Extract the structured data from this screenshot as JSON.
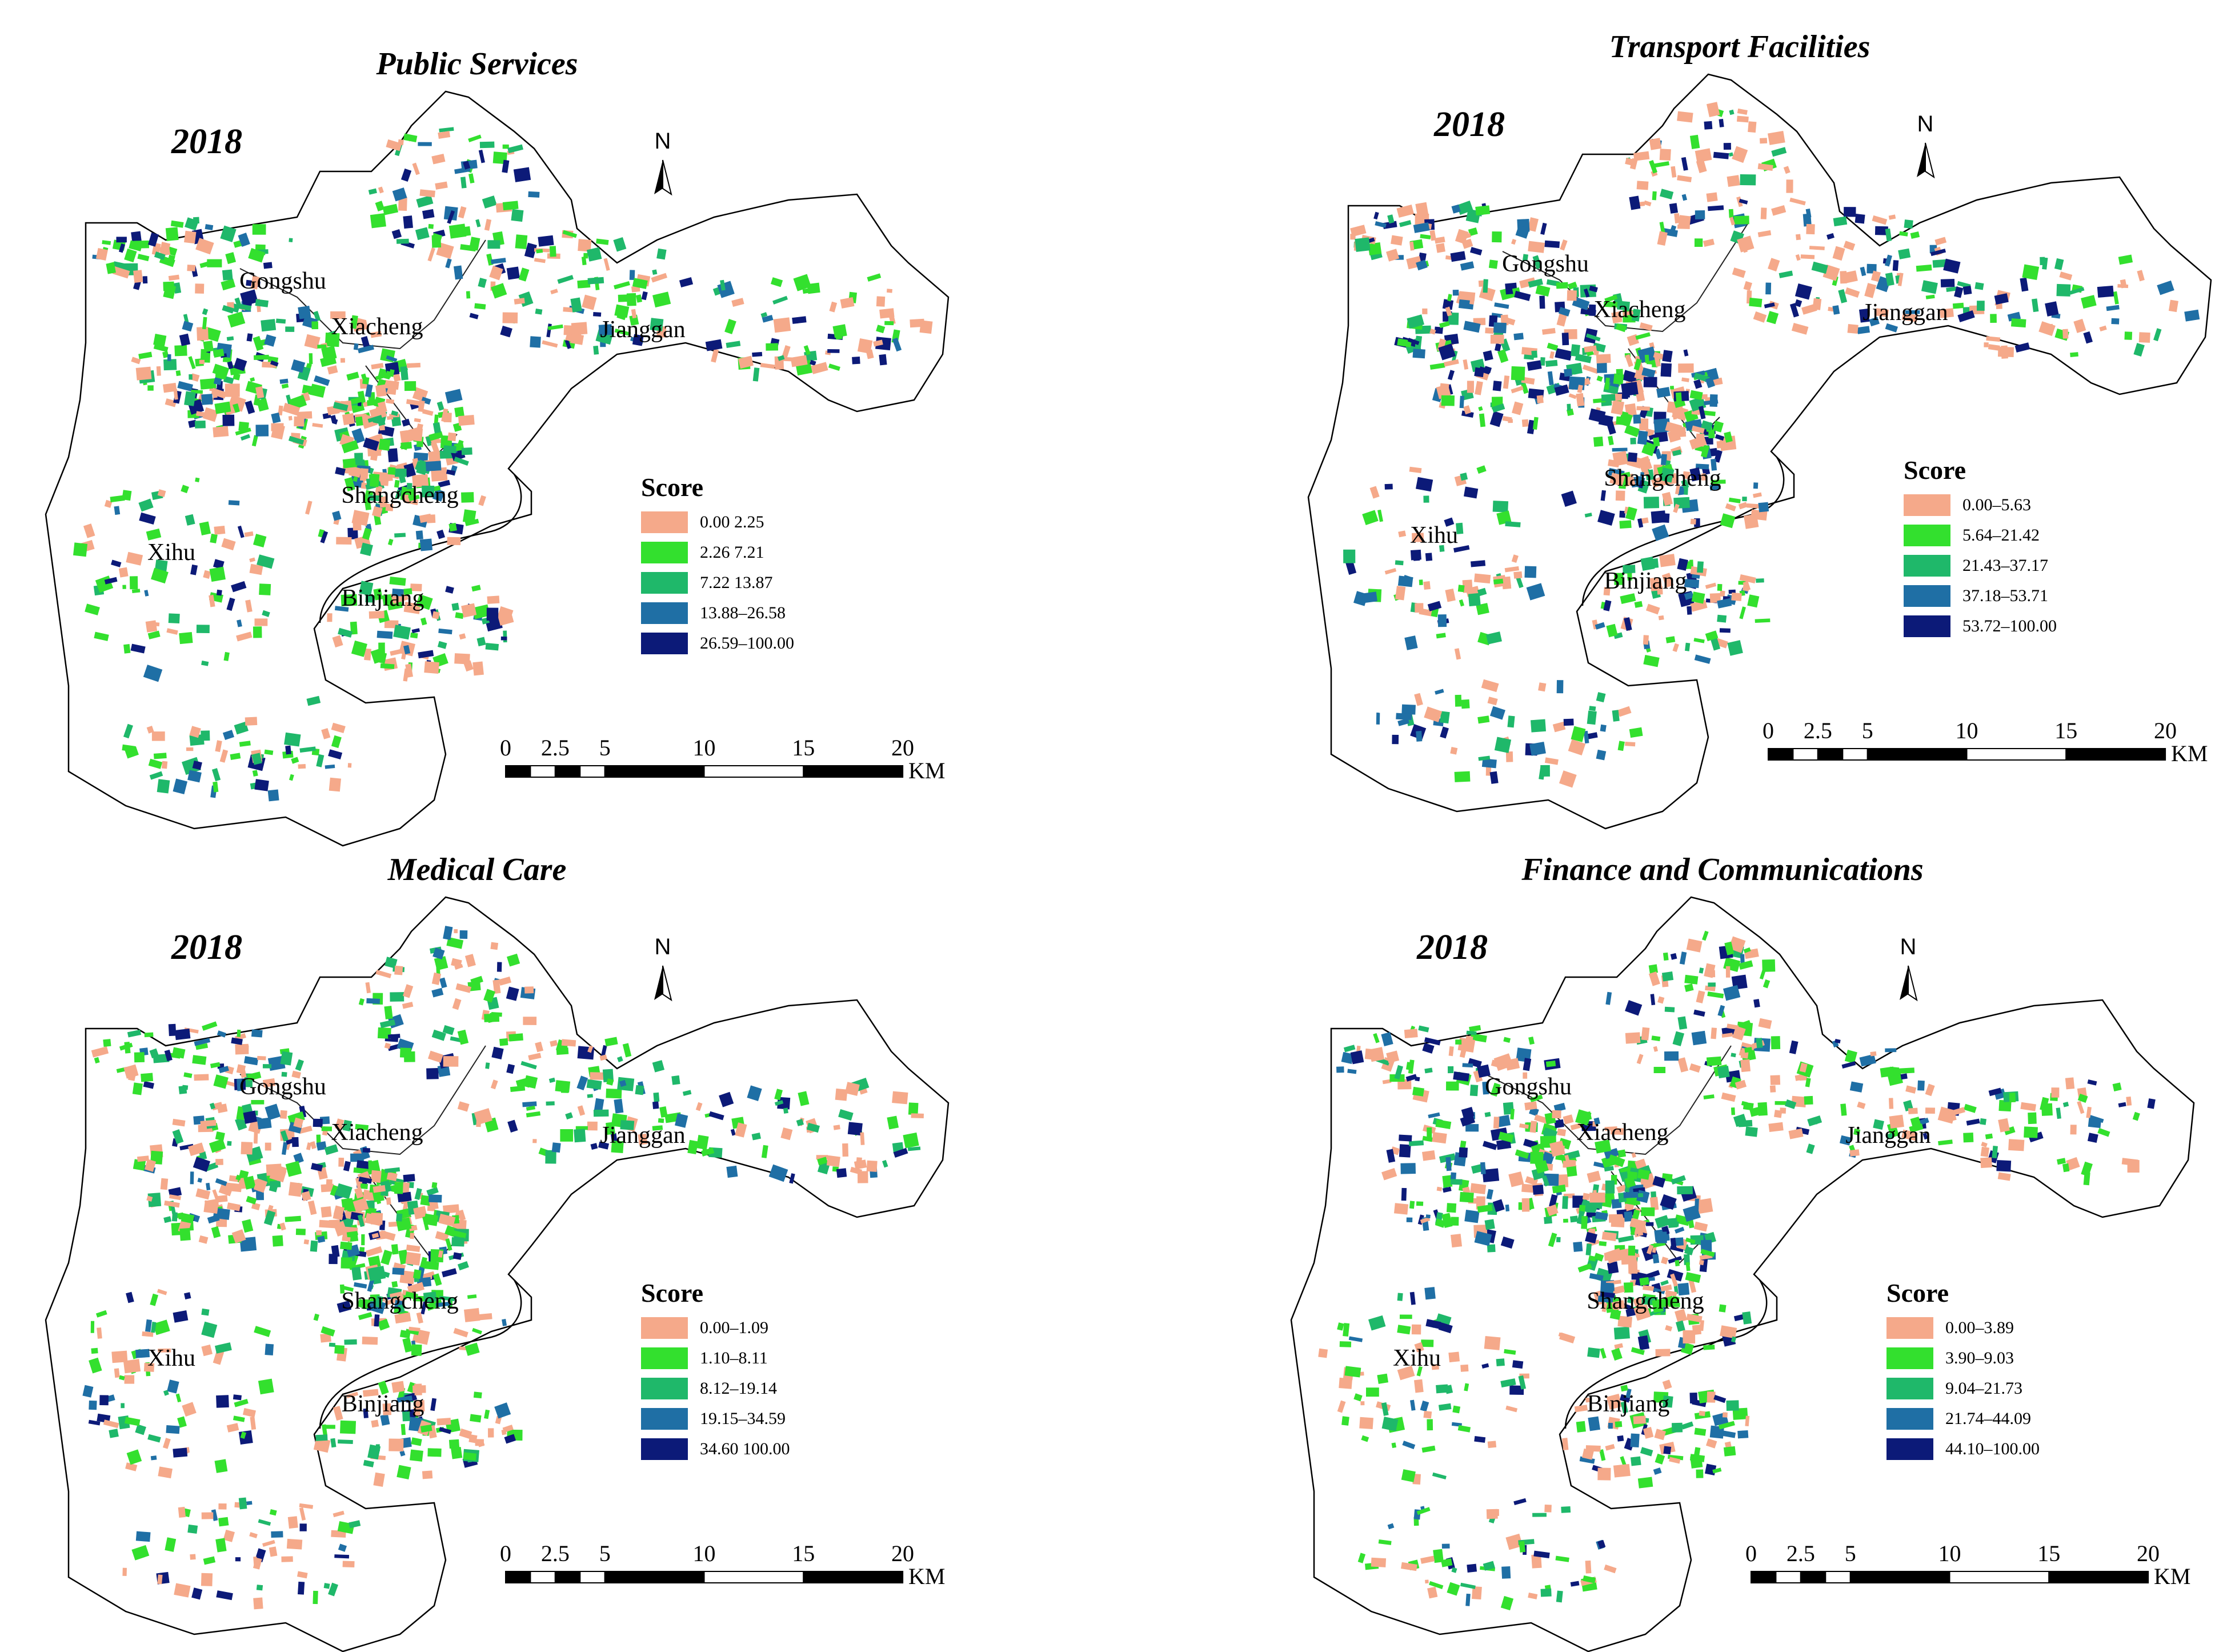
{
  "map_year": "2018",
  "districts": [
    "Gongshu",
    "Xiacheng",
    "Jianggan",
    "Shangcheng",
    "Xihu",
    "Binjiang"
  ],
  "north_label": "N",
  "scale_unit": "KM",
  "legend_title": "Score",
  "colors": {
    "class_1": "#f5a98a",
    "class_2": "#33e02e",
    "class_3": "#1fb86a",
    "class_4": "#1f6fa5",
    "class_5": "#0c1a78"
  },
  "panels": [
    {
      "title": "Public Services",
      "scale_ticks": [
        "0",
        "2.5",
        "5",
        "10",
        "15",
        "20"
      ],
      "legend": [
        "0.00 2.25",
        "2.26 7.21",
        "7.22 13.87",
        "13.88–26.58",
        "26.59–100.00"
      ]
    },
    {
      "title": "Transport Facilities",
      "scale_ticks": [
        "0",
        "2.5",
        "5",
        "10",
        "15",
        "20"
      ],
      "legend": [
        "0.00–5.63",
        "5.64–21.42",
        "21.43–37.17",
        "37.18–53.71",
        "53.72–100.00"
      ]
    },
    {
      "title": "Medical Care",
      "scale_ticks": [
        "0",
        "2.5",
        "5",
        "10",
        "15",
        "20"
      ],
      "legend": [
        "0.00–1.09",
        "1.10–8.11",
        "8.12–19.14",
        "19.15–34.59",
        "34.60 100.00"
      ]
    },
    {
      "title": "Finance and Communications",
      "scale_ticks": [
        "0",
        "2.5",
        "5",
        "10",
        "15",
        "20"
      ],
      "legend": [
        "0.00–3.89",
        "3.90–9.03",
        "9.04–21.73",
        "21.74–44.09",
        "44.10–100.00"
      ]
    }
  ]
}
